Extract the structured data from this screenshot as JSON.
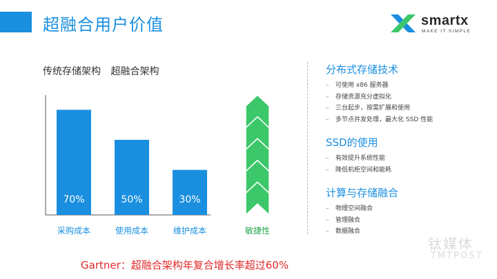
{
  "header": {
    "title": "超融合用户价值",
    "logo_text": "smartx",
    "logo_tagline": "MAKE IT SIMPLE",
    "accent_color": "#1a8fe0"
  },
  "chart_data": {
    "type": "bar",
    "legend": [
      "传统存储架构",
      "超融合架构"
    ],
    "categories": [
      "采购成本",
      "使用成本",
      "维护成本"
    ],
    "values": [
      70,
      50,
      30
    ],
    "value_labels": [
      "70%",
      "50%",
      "30%"
    ],
    "ylim": [
      0,
      100
    ],
    "bar_color": "#1a8fe0",
    "agility": {
      "label": "敏捷性",
      "chevrons": 5,
      "color": "#3cc86a",
      "label_color": "#2aa84f"
    }
  },
  "right_panel": {
    "sections": [
      {
        "title": "分布式存储技术",
        "items": [
          "可使用 x86 服务器",
          "存储资源充分虚拟化",
          "三台起步，按需扩展和使用",
          "多节点并发处理，最大化 SSD 性能"
        ]
      },
      {
        "title": "SSD的使用",
        "items": [
          "有效提升系统性能",
          "降低机柜空间和能耗"
        ]
      },
      {
        "title": "计算与存储融合",
        "items": [
          "物理空间融合",
          "管理融合",
          "数据融合"
        ]
      }
    ]
  },
  "footer": {
    "text": "Gartner：超融合架构年复合增长率超过60%",
    "color": "#e0292a"
  },
  "watermark": {
    "main": "钛媒体",
    "sub": "TMTPOST"
  }
}
